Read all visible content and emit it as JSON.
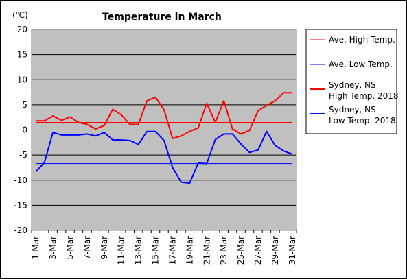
{
  "chart_data": {
    "type": "line",
    "title": "Temperature in March",
    "ylabel": "(℃)",
    "xlabel": "",
    "ylim": [
      -20,
      20
    ],
    "y_ticks": [
      20,
      15,
      10,
      5,
      0,
      -5,
      -10,
      -15,
      -20
    ],
    "x": [
      "1-Mar",
      "2-Mar",
      "3-Mar",
      "4-Mar",
      "5-Mar",
      "6-Mar",
      "7-Mar",
      "8-Mar",
      "9-Mar",
      "10-Mar",
      "11-Mar",
      "12-Mar",
      "13-Mar",
      "14-Mar",
      "15-Mar",
      "16-Mar",
      "17-Mar",
      "18-Mar",
      "19-Mar",
      "20-Mar",
      "21-Mar",
      "22-Mar",
      "23-Mar",
      "24-Mar",
      "25-Mar",
      "26-Mar",
      "27-Mar",
      "28-Mar",
      "29-Mar",
      "30-Mar",
      "31-Mar"
    ],
    "x_tick_labels": [
      "1-Mar",
      "3-Mar",
      "5-Mar",
      "7-Mar",
      "9-Mar",
      "11-Mar",
      "13-Mar",
      "15-Mar",
      "17-Mar",
      "19-Mar",
      "21-Mar",
      "23-Mar",
      "25-Mar",
      "27-Mar",
      "29-Mar",
      "31-Mar"
    ],
    "grid": true,
    "legend_position": "right",
    "plot_background": "#c0c0c0",
    "series": [
      {
        "name": "Ave. High Temp.",
        "color": "#ff0000",
        "stroke_width": 1,
        "values": [
          1.5,
          1.5,
          1.5,
          1.5,
          1.5,
          1.5,
          1.5,
          1.5,
          1.5,
          1.5,
          1.5,
          1.5,
          1.5,
          1.5,
          1.5,
          1.5,
          1.5,
          1.5,
          1.5,
          1.5,
          1.5,
          1.5,
          1.5,
          1.5,
          1.5,
          1.5,
          1.5,
          1.5,
          1.5,
          1.5,
          1.5
        ]
      },
      {
        "name": "Ave. Low Temp.",
        "color": "#0000ff",
        "stroke_width": 1,
        "values": [
          -6.7,
          -6.7,
          -6.7,
          -6.7,
          -6.7,
          -6.7,
          -6.7,
          -6.7,
          -6.7,
          -6.7,
          -6.7,
          -6.7,
          -6.7,
          -6.7,
          -6.7,
          -6.7,
          -6.7,
          -6.7,
          -6.7,
          -6.7,
          -6.7,
          -6.7,
          -6.7,
          -6.7,
          -6.7,
          -6.7,
          -6.7,
          -6.7,
          -6.7,
          -6.7,
          -6.7
        ]
      },
      {
        "name": "Sydney, NS High Temp. 2018",
        "legend_lines": [
          "Sydney, NS",
          "High Temp. 2018"
        ],
        "color": "#ff0000",
        "stroke_width": 2,
        "values": [
          1.8,
          1.8,
          2.8,
          1.9,
          2.6,
          1.5,
          1.1,
          0.2,
          0.9,
          4.1,
          3.0,
          1.1,
          1.1,
          5.8,
          6.5,
          4.0,
          -1.7,
          -1.2,
          -0.3,
          0.4,
          5.3,
          1.5,
          5.8,
          0.2,
          -0.8,
          -0.1,
          3.8,
          4.9,
          5.8,
          7.4,
          7.4
        ]
      },
      {
        "name": "Sydney, NS Low Temp. 2018",
        "legend_lines": [
          "Sydney, NS",
          "Low Temp. 2018"
        ],
        "color": "#0000ff",
        "stroke_width": 2,
        "values": [
          -8.3,
          -6.5,
          -0.5,
          -1.0,
          -1.0,
          -1.0,
          -0.8,
          -1.2,
          -0.5,
          -2.0,
          -2.0,
          -2.1,
          -2.9,
          -0.3,
          -0.3,
          -2.1,
          -7.5,
          -10.4,
          -10.6,
          -6.6,
          -6.7,
          -1.9,
          -0.8,
          -0.8,
          -2.8,
          -4.5,
          -4.0,
          -0.3,
          -3.1,
          -4.2,
          -4.8
        ]
      }
    ]
  }
}
